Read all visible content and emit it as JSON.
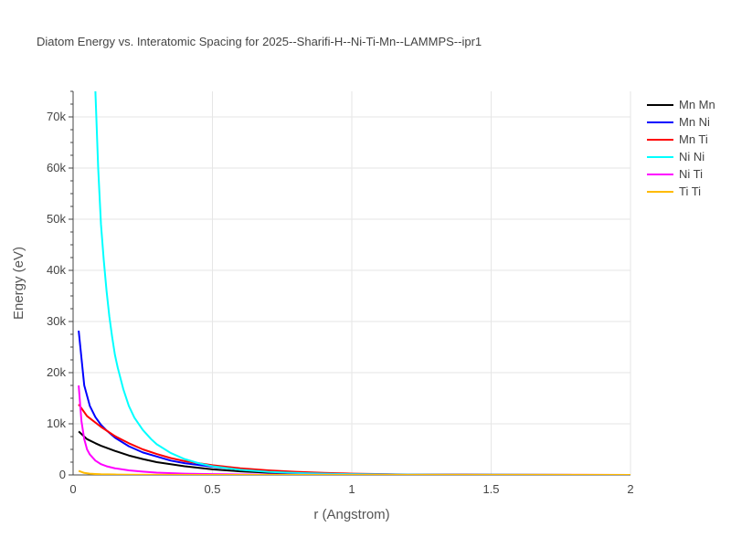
{
  "chart_data": {
    "type": "line",
    "title": "Diatom Energy vs. Interatomic Spacing for 2025--Sharifi-H--Ni-Ti-Mn--LAMMPS--ipr1",
    "xlabel": "r (Angstrom)",
    "ylabel": "Energy (eV)",
    "xlim": [
      0,
      2
    ],
    "ylim": [
      0,
      75000
    ],
    "xticks": [
      0,
      0.5,
      1,
      1.5,
      2
    ],
    "xtick_labels": [
      "0",
      "0.5",
      "1",
      "1.5",
      "2"
    ],
    "yticks": [
      0,
      10000,
      20000,
      30000,
      40000,
      50000,
      60000,
      70000
    ],
    "ytick_labels": [
      "0",
      "10k",
      "20k",
      "30k",
      "40k",
      "50k",
      "60k",
      "70k"
    ],
    "grid": true,
    "legend_position": "right",
    "series": [
      {
        "name": "Mn Mn",
        "color": "#000000",
        "x": [
          0.02,
          0.05,
          0.08,
          0.1,
          0.15,
          0.2,
          0.25,
          0.3,
          0.4,
          0.5,
          0.6,
          0.7,
          0.8,
          0.9,
          1.0,
          1.2,
          1.5,
          2.0
        ],
        "y": [
          8500,
          7000,
          6200,
          5700,
          4700,
          3800,
          3100,
          2500,
          1700,
          1100,
          700,
          450,
          280,
          170,
          110,
          50,
          20,
          5
        ]
      },
      {
        "name": "Mn Ni",
        "color": "#0000ff",
        "x": [
          0.02,
          0.04,
          0.06,
          0.08,
          0.1,
          0.12,
          0.15,
          0.2,
          0.25,
          0.3,
          0.35,
          0.4,
          0.5,
          0.6,
          0.7,
          0.8,
          0.9,
          1.0,
          1.2,
          1.5,
          2.0
        ],
        "y": [
          28200,
          17500,
          13500,
          11300,
          9800,
          8700,
          7300,
          5600,
          4400,
          3600,
          2800,
          2300,
          1600,
          1100,
          700,
          450,
          280,
          170,
          70,
          20,
          5
        ]
      },
      {
        "name": "Mn Ti",
        "color": "#ff0000",
        "x": [
          0.02,
          0.05,
          0.1,
          0.15,
          0.2,
          0.25,
          0.3,
          0.35,
          0.4,
          0.5,
          0.6,
          0.7,
          0.8,
          0.9,
          1.0,
          1.2,
          1.5,
          2.0
        ],
        "y": [
          13800,
          11500,
          9400,
          7600,
          6200,
          5000,
          4100,
          3300,
          2700,
          1900,
          1300,
          900,
          600,
          400,
          250,
          100,
          30,
          5
        ]
      },
      {
        "name": "Ni Ni",
        "color": "#00ffff",
        "x": [
          0.08,
          0.09,
          0.1,
          0.11,
          0.12,
          0.13,
          0.14,
          0.15,
          0.16,
          0.18,
          0.2,
          0.22,
          0.25,
          0.28,
          0.3,
          0.35,
          0.4,
          0.45,
          0.5,
          0.6,
          0.7,
          0.8,
          0.9,
          1.0,
          1.2,
          1.5,
          2.0
        ],
        "y": [
          75000,
          60000,
          49000,
          42000,
          36000,
          31000,
          27000,
          23500,
          21000,
          16800,
          13500,
          11200,
          8800,
          7000,
          6000,
          4300,
          3100,
          2300,
          1700,
          1000,
          600,
          380,
          240,
          150,
          60,
          20,
          5
        ]
      },
      {
        "name": "Ni Ti",
        "color": "#ff00ff",
        "x": [
          0.02,
          0.03,
          0.04,
          0.05,
          0.06,
          0.08,
          0.1,
          0.12,
          0.15,
          0.2,
          0.25,
          0.3,
          0.4,
          0.5,
          0.6,
          0.8,
          1.0,
          1.5,
          2.0
        ],
        "y": [
          17500,
          10500,
          7000,
          5000,
          4000,
          2800,
          2100,
          1700,
          1300,
          900,
          650,
          450,
          250,
          150,
          90,
          40,
          20,
          5,
          2
        ]
      },
      {
        "name": "Ti Ti",
        "color": "#ffbb00",
        "x": [
          0.02,
          0.04,
          0.06,
          0.08,
          0.1,
          0.15,
          0.2,
          0.3,
          0.5,
          1.0,
          1.5,
          2.0
        ],
        "y": [
          800,
          400,
          250,
          180,
          130,
          80,
          50,
          25,
          10,
          3,
          1,
          0
        ]
      }
    ]
  }
}
